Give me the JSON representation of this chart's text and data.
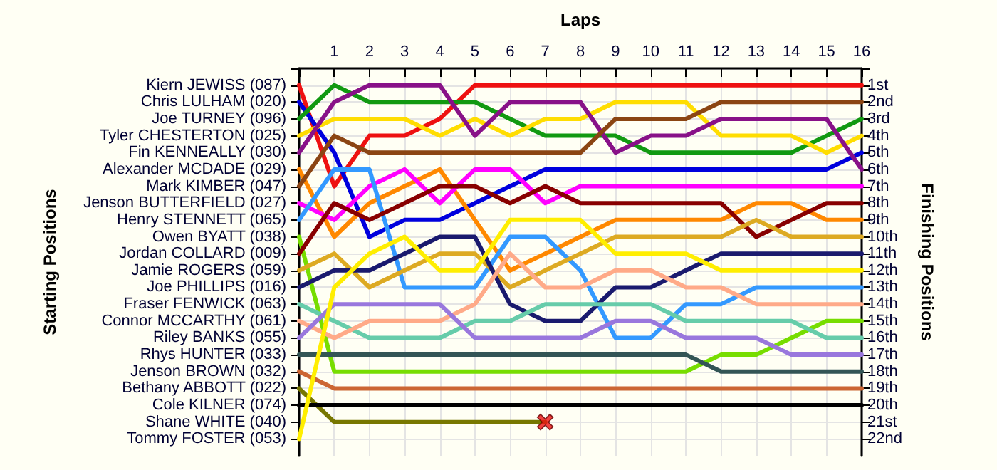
{
  "chart_data": {
    "type": "line",
    "xlabel": "Laps",
    "y2label": "Finishing Positions",
    "grid": true,
    "marker": "none",
    "tick_labels": "xy2",
    "annotations": [
      "Kiern JEWISS (087)",
      "Chris LULHAM (020)",
      "Joe TURNEY (096)",
      "Tyler CHESTERTON (025)",
      "Fin KENNEALLY (030)",
      "Alexander MCDADE (029)",
      "Mark KIMBER (047)",
      "Jenson BUTTERFIELD (027)",
      "Henry STENNETT (065)",
      "Owen BYATT (038)",
      "Jordan COLLARD (009)",
      "Jamie ROGERS (059)",
      "Joe PHILLIPS (016)",
      "Fraser FENWICK (063)",
      "Connor MCCARTHY (061)",
      "Riley BANKS (055)",
      "Rhys HUNTER (033)",
      "Jenson BROWN (032)",
      "Bethany ABBOTT (022)",
      "Cole KILNER (074)",
      "Shane WHITE (040)",
      "Tommy FOSTER (053)",
      "Starting Positions"
    ],
    "x": [
      0,
      1,
      2,
      3,
      4,
      5,
      6,
      7,
      8,
      9,
      10,
      11,
      12,
      13,
      14,
      15,
      16
    ],
    "xlim": [
      0,
      16
    ],
    "xticks": [
      {
        "value": 0,
        "label": null
      },
      1,
      2,
      3,
      4,
      5,
      6,
      7,
      8,
      9,
      10,
      11,
      12,
      13,
      14,
      15,
      16
    ],
    "y2lim": [
      23,
      0
    ],
    "y2ticks": [
      {
        "value": 0,
        "label": null
      },
      {
        "value": 1,
        "label": "1st"
      },
      {
        "value": 2,
        "label": "2nd"
      },
      {
        "value": 3,
        "label": "3rd"
      },
      {
        "value": 4,
        "label": "4th"
      },
      {
        "value": 5,
        "label": "5th"
      },
      {
        "value": 6,
        "label": "6th"
      },
      {
        "value": 7,
        "label": "7th"
      },
      {
        "value": 8,
        "label": "8th"
      },
      {
        "value": 9,
        "label": "9th"
      },
      {
        "value": 10,
        "label": "10th"
      },
      {
        "value": 11,
        "label": "11th"
      },
      {
        "value": 12,
        "label": "12th"
      },
      {
        "value": 13,
        "label": "13th"
      },
      {
        "value": 14,
        "label": "14th"
      },
      {
        "value": 15,
        "label": "15th"
      },
      {
        "value": 16,
        "label": "16th"
      },
      {
        "value": 17,
        "label": "17th"
      },
      {
        "value": 18,
        "label": "18th"
      },
      {
        "value": 19,
        "label": "19th"
      },
      {
        "value": 20,
        "label": "20th"
      },
      {
        "value": 21,
        "label": "21st"
      },
      {
        "value": 22,
        "label": "22nd"
      }
    ],
    "series": [
      {
        "axis": "y2",
        "color": "#ee1111",
        "values": [
          1,
          7,
          4,
          4,
          3,
          1,
          1,
          1,
          1,
          1,
          1,
          1,
          1,
          1,
          1,
          1,
          1
        ]
      },
      {
        "axis": "y2",
        "color": "#0000dd",
        "values": [
          2,
          5,
          10,
          9,
          9,
          8,
          7,
          6,
          6,
          6,
          6,
          6,
          6,
          6,
          6,
          6,
          5
        ]
      },
      {
        "axis": "y2",
        "color": "#119911",
        "values": [
          3,
          1,
          2,
          2,
          2,
          2,
          3,
          4,
          4,
          4,
          5,
          5,
          5,
          5,
          5,
          4,
          3
        ]
      },
      {
        "axis": "y2",
        "color": "#ffdd00",
        "values": [
          4,
          3,
          3,
          3,
          4,
          3,
          4,
          3,
          3,
          2,
          2,
          2,
          4,
          4,
          4,
          5,
          4
        ]
      },
      {
        "axis": "y2",
        "color": "#881188",
        "values": [
          5,
          2,
          1,
          1,
          1,
          4,
          2,
          2,
          2,
          5,
          4,
          4,
          3,
          3,
          3,
          3,
          6
        ]
      },
      {
        "axis": "y2",
        "color": "#ff8800",
        "values": [
          6,
          10,
          8,
          7,
          6,
          9,
          12,
          11,
          10,
          9,
          9,
          9,
          9,
          8,
          8,
          9,
          9
        ]
      },
      {
        "axis": "y2",
        "color": "#8b4513",
        "values": [
          7,
          4,
          5,
          5,
          5,
          5,
          5,
          5,
          5,
          3,
          3,
          3,
          2,
          2,
          2,
          2,
          2
        ]
      },
      {
        "axis": "y2",
        "color": "#ff00ff",
        "values": [
          8,
          9,
          7,
          6,
          8,
          6,
          6,
          8,
          7,
          7,
          7,
          7,
          7,
          7,
          7,
          7,
          7
        ]
      },
      {
        "axis": "y2",
        "color": "#3399ff",
        "values": [
          9,
          6,
          6,
          13,
          13,
          13,
          10,
          10,
          12,
          16,
          16,
          14,
          14,
          13,
          13,
          13,
          13
        ]
      },
      {
        "axis": "y2",
        "color": "#77dd00",
        "values": [
          10,
          18,
          18,
          18,
          18,
          18,
          18,
          18,
          18,
          18,
          18,
          18,
          17,
          17,
          16,
          15,
          15
        ]
      },
      {
        "axis": "y2",
        "color": "#880000",
        "values": [
          11,
          8,
          9,
          8,
          7,
          7,
          8,
          7,
          8,
          8,
          8,
          8,
          8,
          10,
          9,
          8,
          8
        ]
      },
      {
        "axis": "y2",
        "color": "#ddaa22",
        "values": [
          12,
          11,
          13,
          12,
          11,
          11,
          13,
          12,
          11,
          10,
          10,
          10,
          10,
          9,
          10,
          10,
          10
        ]
      },
      {
        "axis": "y2",
        "color": "#1a1a6e",
        "values": [
          13,
          12,
          12,
          11,
          10,
          10,
          14,
          15,
          15,
          13,
          13,
          12,
          11,
          11,
          11,
          11,
          11
        ]
      },
      {
        "axis": "y2",
        "color": "#66ccaa",
        "values": [
          14,
          15,
          16,
          16,
          16,
          15,
          15,
          14,
          14,
          14,
          14,
          15,
          15,
          15,
          15,
          16,
          16
        ]
      },
      {
        "axis": "y2",
        "color": "#ffaa88",
        "values": [
          15,
          16,
          15,
          15,
          15,
          14,
          11,
          13,
          13,
          12,
          12,
          13,
          13,
          14,
          14,
          14,
          14
        ]
      },
      {
        "axis": "y2",
        "color": "#9977dd",
        "values": [
          16,
          14,
          14,
          14,
          14,
          16,
          16,
          16,
          16,
          15,
          15,
          16,
          16,
          16,
          17,
          17,
          17
        ]
      },
      {
        "axis": "y2",
        "color": "#335555",
        "values": [
          17,
          17,
          17,
          17,
          17,
          17,
          17,
          17,
          17,
          17,
          17,
          17,
          18,
          18,
          18,
          18,
          18
        ]
      },
      {
        "axis": "y2",
        "color": "#cc6633",
        "values": [
          18,
          19,
          19,
          19,
          19,
          19,
          19,
          19,
          19,
          19,
          19,
          19,
          19,
          19,
          19,
          19,
          19
        ]
      },
      {
        "axis": "y2",
        "color": "#777700",
        "values": [
          19,
          21,
          21,
          21,
          21,
          21,
          21,
          21,
          null,
          null,
          null,
          null,
          null,
          null,
          null,
          null,
          null
        ]
      },
      {
        "axis": "y2",
        "color": "#000000",
        "values": [
          20,
          20,
          20,
          20,
          20,
          20,
          20,
          20,
          20,
          20,
          20,
          20,
          20,
          20,
          20,
          20,
          20
        ]
      },
      {
        "axis": "y2",
        "color": "#ffee00",
        "values": [
          22,
          13,
          11,
          10,
          12,
          12,
          9,
          9,
          9,
          11,
          11,
          11,
          12,
          12,
          12,
          12,
          12
        ]
      },
      {
        "axis": "y2",
        "type": "scatter",
        "color": "#ee1111",
        "marker": "cross",
        "x": [
          7
        ],
        "values": [
          21
        ]
      }
    ]
  }
}
